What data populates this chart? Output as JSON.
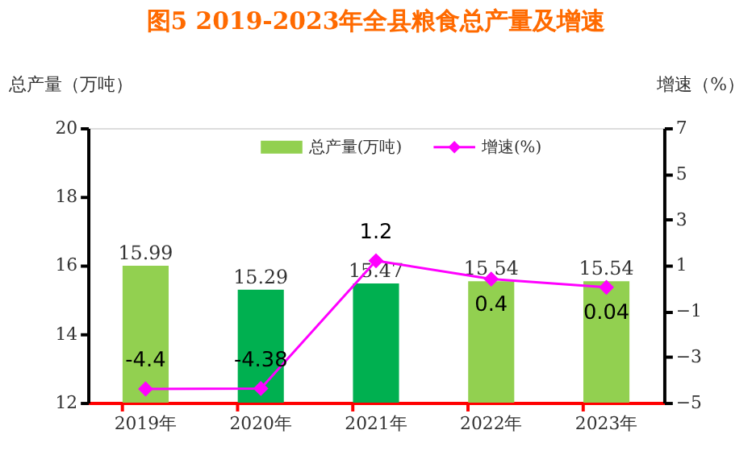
{
  "chart_data": {
    "type": "bar",
    "title": "图5   2019-2023年全县粮食总产量及增速",
    "ylabel": "总产量（万吨）",
    "y2label": "增速（%）",
    "categories": [
      "2019年",
      "2020年",
      "2021年",
      "2022年",
      "2023年"
    ],
    "series": [
      {
        "name": "总产量(万吨)",
        "type": "bar",
        "color": "#92d050",
        "colors": [
          "#92d050",
          "#00b050",
          "#00b050",
          "#92d050",
          "#92d050"
        ],
        "values": [
          15.99,
          15.29,
          15.47,
          15.54,
          15.54
        ]
      },
      {
        "name": "增速(%)",
        "type": "line",
        "axis": "y2",
        "color": "#ff00ff",
        "marker": "diamond",
        "values": [
          -4.4,
          -4.38,
          1.2,
          0.4,
          0.04
        ]
      }
    ],
    "ylim": [
      12,
      20
    ],
    "yticks": [
      12,
      14,
      16,
      18,
      20
    ],
    "y2lim": [
      -5,
      7
    ],
    "y2ticks": [
      -5,
      -3,
      -1,
      1,
      3,
      5,
      7
    ],
    "data_labels": true,
    "legend": "top",
    "grid": false
  }
}
